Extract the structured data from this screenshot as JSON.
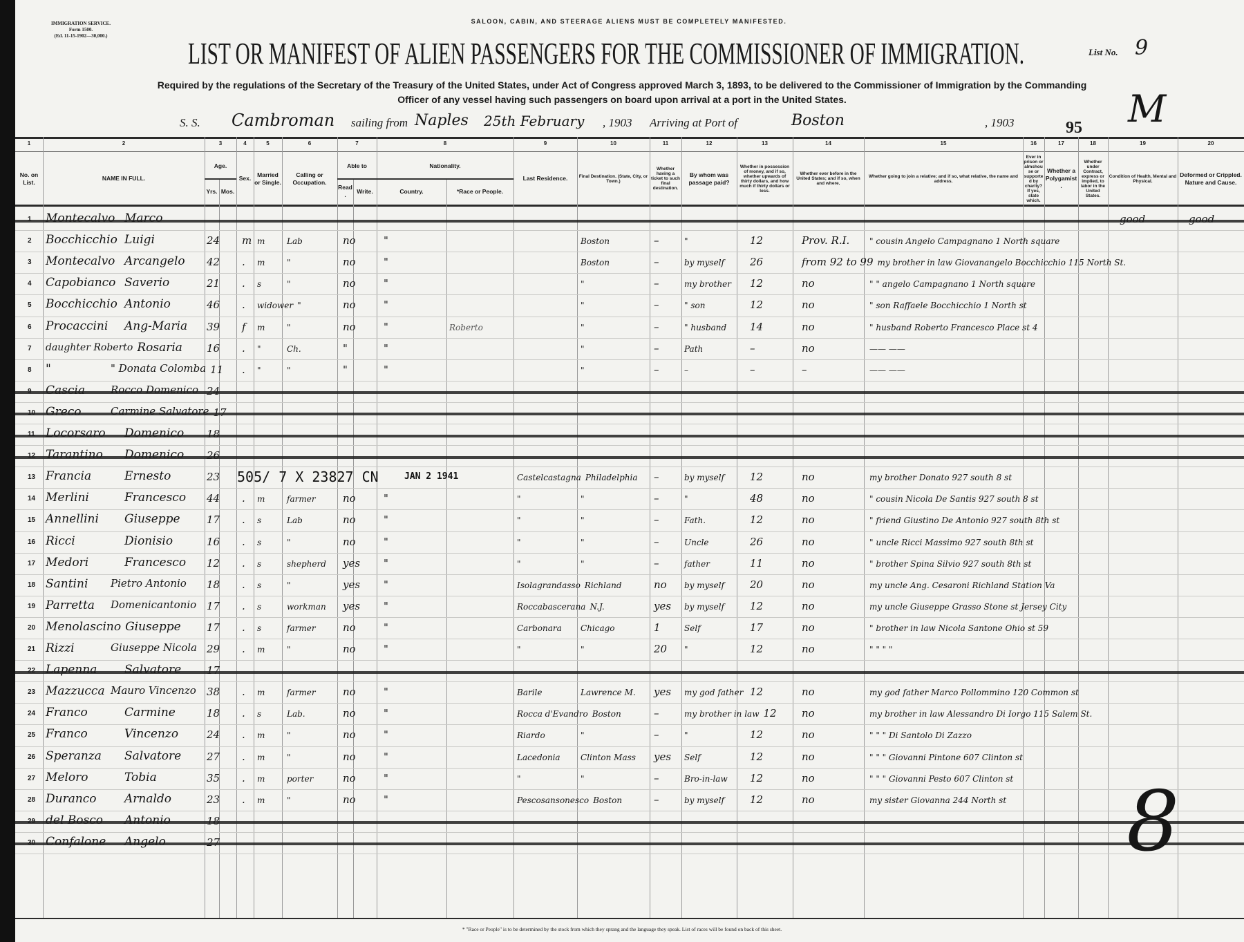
{
  "form_id": {
    "line1": "IMMIGRATION SERVICE.",
    "line2": "Form 1500.",
    "line3": "(Ed. 11-15-1902—30,000.)"
  },
  "notice": "SALOON, CABIN, AND STEERAGE ALIENS MUST BE COMPLETELY MANIFESTED.",
  "title": "LIST OR MANIFEST OF ALIEN PASSENGERS FOR THE COMMISSIONER OF IMMIGRATION.",
  "list_no_label": "List No.",
  "list_no": "9",
  "required_line1": "Required by the regulations of the Secretary of the Treasury of the United States, under Act of Congress approved March 3, 1893, to be delivered to the Commissioner of Immigration by the Commanding",
  "required_line2": "Officer of any vessel having such passengers on board upon arrival at a port in the United States.",
  "voyage": {
    "ss_label": "S. S.",
    "ship": "Cambroman",
    "sailing_label": "sailing from",
    "from_port": "Naples",
    "date": "25th February",
    "year1": ", 1903",
    "arriving_label": "Arriving at Port of",
    "to_port": "Boston",
    "year2": ", 1903"
  },
  "marks": {
    "number": "95",
    "initial": "M",
    "count": "8"
  },
  "columns": [
    {
      "num": "1",
      "label": "No. on List."
    },
    {
      "num": "2",
      "label": "NAME IN FULL."
    },
    {
      "num": "3",
      "label": "Age.",
      "sub": [
        "Yrs.",
        "Mos."
      ]
    },
    {
      "num": "4",
      "label": "Sex."
    },
    {
      "num": "5",
      "label": "Married or Single."
    },
    {
      "num": "6",
      "label": "Calling or Occupation."
    },
    {
      "num": "7",
      "label": "Able to",
      "sub": [
        "Read.",
        "Write."
      ]
    },
    {
      "num": "8",
      "label": "Nationality.",
      "sub": [
        "Country.",
        "*Race or People."
      ]
    },
    {
      "num": "9",
      "label": "Last Residence."
    },
    {
      "num": "10",
      "label": "Final Destination. (State, City, or Town.)"
    },
    {
      "num": "11",
      "label": "Whether having a ticket to such final destination."
    },
    {
      "num": "12",
      "label": "By whom was passage paid?"
    },
    {
      "num": "13",
      "label": "Whether in possession of money, and if so, whether upwards of thirty dollars, and how much if thirty dollars or less."
    },
    {
      "num": "14",
      "label": "Whether ever before in the United States; and if so, when and where."
    },
    {
      "num": "15",
      "label": "Whether going to join a relative; and if so, what relative, the name and address."
    },
    {
      "num": "16",
      "label": "Ever in prison or almshouse or supported by charity? If yes, state which."
    },
    {
      "num": "17",
      "label": "Whether a Polygamist."
    },
    {
      "num": "18",
      "label": "Whether under Contract, express or implied, to labor in the United States."
    },
    {
      "num": "19",
      "label": "Condition of Health, Mental and Physical."
    },
    {
      "num": "20",
      "label": "Deformed or Crippled. Nature and Cause."
    }
  ],
  "rows": [
    {
      "no": "1",
      "surname": "Montecalvo",
      "given": "Marco",
      "struck": true,
      "condition": "good",
      "deformed": "good"
    },
    {
      "no": "2",
      "surname": "Bocchicchio",
      "given": "Luigi",
      "age": "24",
      "sex": "m",
      "married": "m",
      "calling": "Lab",
      "read": "no",
      "country": "\"",
      "destination": "Boston",
      "ticket": "–",
      "paid": "\"",
      "money": "12",
      "before": "Prov. R.I.",
      "relative": "\" cousin Angelo Campagnano 1 North square"
    },
    {
      "no": "3",
      "surname": "Montecalvo",
      "given": "Arcangelo",
      "age": "42",
      "sex": ".",
      "married": "m",
      "calling": "\"",
      "read": "no",
      "country": "\"",
      "destination": "Boston",
      "ticket": "–",
      "paid": "by myself",
      "money": "26",
      "before": "from 92 to 99",
      "relative": "my brother in law Giovanangelo Bocchicchio 115 North St."
    },
    {
      "no": "4",
      "surname": "Capobianco",
      "given": "Saverio",
      "age": "21",
      "sex": ".",
      "married": "s",
      "calling": "\"",
      "read": "no",
      "country": "\"",
      "destination": "\"",
      "ticket": "–",
      "paid": "my brother",
      "money": "12",
      "before": "no",
      "relative": "\" \" angelo Campagnano 1 North square"
    },
    {
      "no": "5",
      "surname": "Bocchicchio",
      "given": "Antonio",
      "age": "46",
      "sex": ".",
      "married": "widower",
      "calling": "\"",
      "read": "no",
      "country": "\"",
      "destination": "\"",
      "ticket": "–",
      "paid": "\" son",
      "money": "12",
      "before": "no",
      "relative": "\" son Raffaele Bocchicchio 1 North st"
    },
    {
      "no": "6",
      "surname": "Procaccini",
      "given": "Ang-Maria",
      "note": "Roberto",
      "age": "39",
      "sex": "f",
      "married": "m",
      "calling": "\"",
      "read": "no",
      "country": "\"",
      "destination": "\"",
      "ticket": "–",
      "paid": "\" husband",
      "money": "14",
      "before": "no",
      "relative": "\" husband Roberto Francesco Place st 4"
    },
    {
      "no": "7",
      "surname": "daughter Roberto",
      "given": "Rosaria",
      "age": "16",
      "sex": ".",
      "married": "\"",
      "calling": "Ch.",
      "read": "\"",
      "country": "\"",
      "destination": "\"",
      "ticket": "–",
      "paid": "Path",
      "money": "–",
      "before": "no",
      "relative": "—— ——"
    },
    {
      "no": "8",
      "surname": "\"",
      "given": "\" Donata Colomba",
      "age": "11",
      "sex": ".",
      "married": "\"",
      "calling": "\"",
      "read": "\"",
      "country": "\"",
      "destination": "\"",
      "ticket": "–",
      "paid": "–",
      "money": "–",
      "before": "–",
      "relative": "—— ——"
    },
    {
      "no": "9",
      "surname": "Cascia",
      "given": "Rocco Domenico",
      "age": "24",
      "struck": true
    },
    {
      "no": "10",
      "surname": "Greco",
      "given": "Carmine Salvatore",
      "age": "17",
      "struck": true
    },
    {
      "no": "11",
      "surname": "Locorsaro",
      "given": "Domenico",
      "age": "18",
      "struck": true
    },
    {
      "no": "12",
      "surname": "Tarantino",
      "given": "Domenico",
      "age": "26",
      "struck": true
    },
    {
      "no": "13",
      "surname": "Francia",
      "given": "Ernesto",
      "age": "23",
      "stamp": "505/ 7 X 23827 CN",
      "stamp_date": "JAN 2 1941",
      "residence": "Castelcastagna",
      "destination": "Philadelphia",
      "ticket": "–",
      "paid": "by myself",
      "money": "12",
      "before": "no",
      "relative": "my brother Donato 927 south 8 st"
    },
    {
      "no": "14",
      "surname": "Merlini",
      "given": "Francesco",
      "age": "44",
      "sex": ".",
      "married": "m",
      "calling": "farmer",
      "read": "no",
      "country": "\"",
      "residence": "\"",
      "destination": "\"",
      "ticket": "–",
      "paid": "\"",
      "money": "48",
      "before": "no",
      "relative": "\" cousin Nicola De Santis 927 south 8 st"
    },
    {
      "no": "15",
      "surname": "Annellini",
      "given": "Giuseppe",
      "age": "17",
      "sex": ".",
      "married": "s",
      "calling": "Lab",
      "read": "no",
      "country": "\"",
      "residence": "\"",
      "destination": "\"",
      "ticket": "–",
      "paid": "Fath.",
      "money": "12",
      "before": "no",
      "relative": "\" friend Giustino De Antonio 927 south 8th st"
    },
    {
      "no": "16",
      "surname": "Ricci",
      "given": "Dionisio",
      "age": "16",
      "sex": ".",
      "married": "s",
      "calling": "\"",
      "read": "no",
      "country": "\"",
      "residence": "\"",
      "destination": "\"",
      "ticket": "–",
      "paid": "Uncle",
      "money": "26",
      "before": "no",
      "relative": "\" uncle Ricci Massimo 927 south 8th st"
    },
    {
      "no": "17",
      "surname": "Medori",
      "given": "Francesco",
      "age": "12",
      "sex": ".",
      "married": "s",
      "calling": "shepherd",
      "read": "yes",
      "country": "\"",
      "residence": "\"",
      "destination": "\"",
      "ticket": "–",
      "paid": "father",
      "money": "11",
      "before": "no",
      "relative": "\" brother Spina Silvio 927 south 8th st"
    },
    {
      "no": "18",
      "surname": "Santini",
      "given": "Pietro Antonio",
      "age": "18",
      "sex": ".",
      "married": "s",
      "calling": "\"",
      "read": "yes",
      "country": "\"",
      "residence": "Isolagrandasso",
      "destination": "Richland",
      "ticket": "no",
      "paid": "by myself",
      "money": "20",
      "before": "no",
      "relative": "my uncle Ang. Cesaroni Richland Station Va"
    },
    {
      "no": "19",
      "surname": "Parretta",
      "given": "Domenicantonio",
      "age": "17",
      "sex": ".",
      "married": "s",
      "calling": "workman",
      "read": "yes",
      "country": "\"",
      "residence": "Roccabascerana",
      "destination": "N.J.",
      "ticket": "yes",
      "paid": "by myself",
      "money": "12",
      "before": "no",
      "relative": "my uncle Giuseppe Grasso Stone st Jersey City"
    },
    {
      "no": "20",
      "surname": "Menolascino",
      "given": "Giuseppe",
      "age": "17",
      "sex": ".",
      "married": "s",
      "calling": "farmer",
      "read": "no",
      "country": "\"",
      "residence": "Carbonara",
      "destination": "Chicago",
      "ticket": "1",
      "paid": "Self",
      "money": "17",
      "before": "no",
      "relative": "\" brother in law Nicola Santone Ohio st 59"
    },
    {
      "no": "21",
      "surname": "Rizzi",
      "given": "Giuseppe Nicola",
      "age": "29",
      "sex": ".",
      "married": "m",
      "calling": "\"",
      "read": "no",
      "country": "\"",
      "residence": "\"",
      "destination": "\"",
      "ticket": "20",
      "paid": "\"",
      "money": "12",
      "before": "no",
      "relative": "\" \" \" \""
    },
    {
      "no": "22",
      "surname": "Lapenna",
      "given": "Salvatore",
      "age": "17",
      "struck": true
    },
    {
      "no": "23",
      "surname": "Mazzucca",
      "given": "Mauro Vincenzo",
      "age": "38",
      "sex": ".",
      "married": "m",
      "calling": "farmer",
      "read": "no",
      "country": "\"",
      "residence": "Barile",
      "destination": "Lawrence M.",
      "ticket": "yes",
      "paid": "my god father",
      "money": "12",
      "before": "no",
      "relative": "my god father Marco Pollommino 120 Common st"
    },
    {
      "no": "24",
      "surname": "Franco",
      "given": "Carmine",
      "age": "18",
      "sex": ".",
      "married": "s",
      "calling": "Lab.",
      "read": "no",
      "country": "\"",
      "residence": "Rocca d'Evandro",
      "destination": "Boston",
      "ticket": "–",
      "paid": "my brother in law",
      "money": "12",
      "before": "no",
      "relative": "my brother in law Alessandro Di Iorgo 115 Salem St."
    },
    {
      "no": "25",
      "surname": "Franco",
      "given": "Vincenzo",
      "age": "24",
      "sex": ".",
      "married": "m",
      "calling": "\"",
      "read": "no",
      "country": "\"",
      "residence": "Riardo",
      "destination": "\"",
      "ticket": "–",
      "paid": "\"",
      "money": "12",
      "before": "no",
      "relative": "\" \" \" Di Santolo Di Zazzo"
    },
    {
      "no": "26",
      "surname": "Speranza",
      "given": "Salvatore",
      "age": "27",
      "sex": ".",
      "married": "m",
      "calling": "\"",
      "read": "no",
      "country": "\"",
      "residence": "Lacedonia",
      "destination": "Clinton Mass",
      "ticket": "yes",
      "paid": "Self",
      "money": "12",
      "before": "no",
      "relative": "\" \" \" Giovanni Pintone 607 Clinton st"
    },
    {
      "no": "27",
      "surname": "Meloro",
      "given": "Tobia",
      "age": "35",
      "sex": ".",
      "married": "m",
      "calling": "porter",
      "read": "no",
      "country": "\"",
      "residence": "\"",
      "destination": "\"",
      "ticket": "–",
      "paid": "Bro-in-law",
      "money": "12",
      "before": "no",
      "relative": "\" \" \" Giovanni Pesto 607 Clinton st"
    },
    {
      "no": "28",
      "surname": "Duranco",
      "given": "Arnaldo",
      "age": "23",
      "sex": ".",
      "married": "m",
      "calling": "\"",
      "read": "no",
      "country": "\"",
      "residence": "Pescosansonesco",
      "destination": "Boston",
      "ticket": "–",
      "paid": "by myself",
      "money": "12",
      "before": "no",
      "relative": "my sister Giovanna 244 North st"
    },
    {
      "no": "29",
      "surname": "del Bosco",
      "given": "Antonio",
      "age": "18",
      "struck": true
    },
    {
      "no": "30",
      "surname": "Confalone",
      "given": "Angelo",
      "age": "27",
      "struck": true
    }
  ],
  "footer": "* \"Race or People\" is to be determined by the stock from which they sprang and the language they speak. List of races will be found on back of this sheet."
}
